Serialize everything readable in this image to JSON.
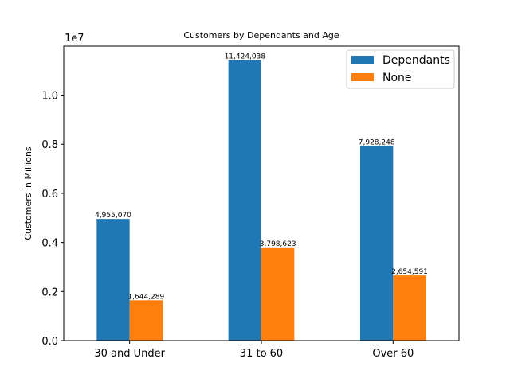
{
  "chart_data": {
    "type": "bar",
    "title": "Customers by Dependants and Age",
    "xlabel": "",
    "ylabel": "Customers in Millions",
    "categories": [
      "30 and Under",
      "31 to 60",
      "Over 60"
    ],
    "series": [
      {
        "name": "Dependants",
        "values": [
          4955070,
          11424038,
          7928248
        ],
        "labels": [
          "4,955,070",
          "11,424,038",
          "7,928,248"
        ],
        "color": "#1f77b4"
      },
      {
        "name": "None",
        "values": [
          1644289,
          3798623,
          2654591
        ],
        "labels": [
          "1,644,289",
          "3,798,623",
          "2,654,591"
        ],
        "color": "#ff7f0e"
      }
    ],
    "ylim": [
      0,
      11995240
    ],
    "yticks": [
      0,
      2000000,
      4000000,
      6000000,
      8000000,
      10000000
    ],
    "ytick_labels": [
      "0.0",
      "0.2",
      "0.4",
      "0.6",
      "0.8",
      "1.0"
    ],
    "y_offset_label": "1e7",
    "legend_position": "top-right",
    "grid": false
  }
}
